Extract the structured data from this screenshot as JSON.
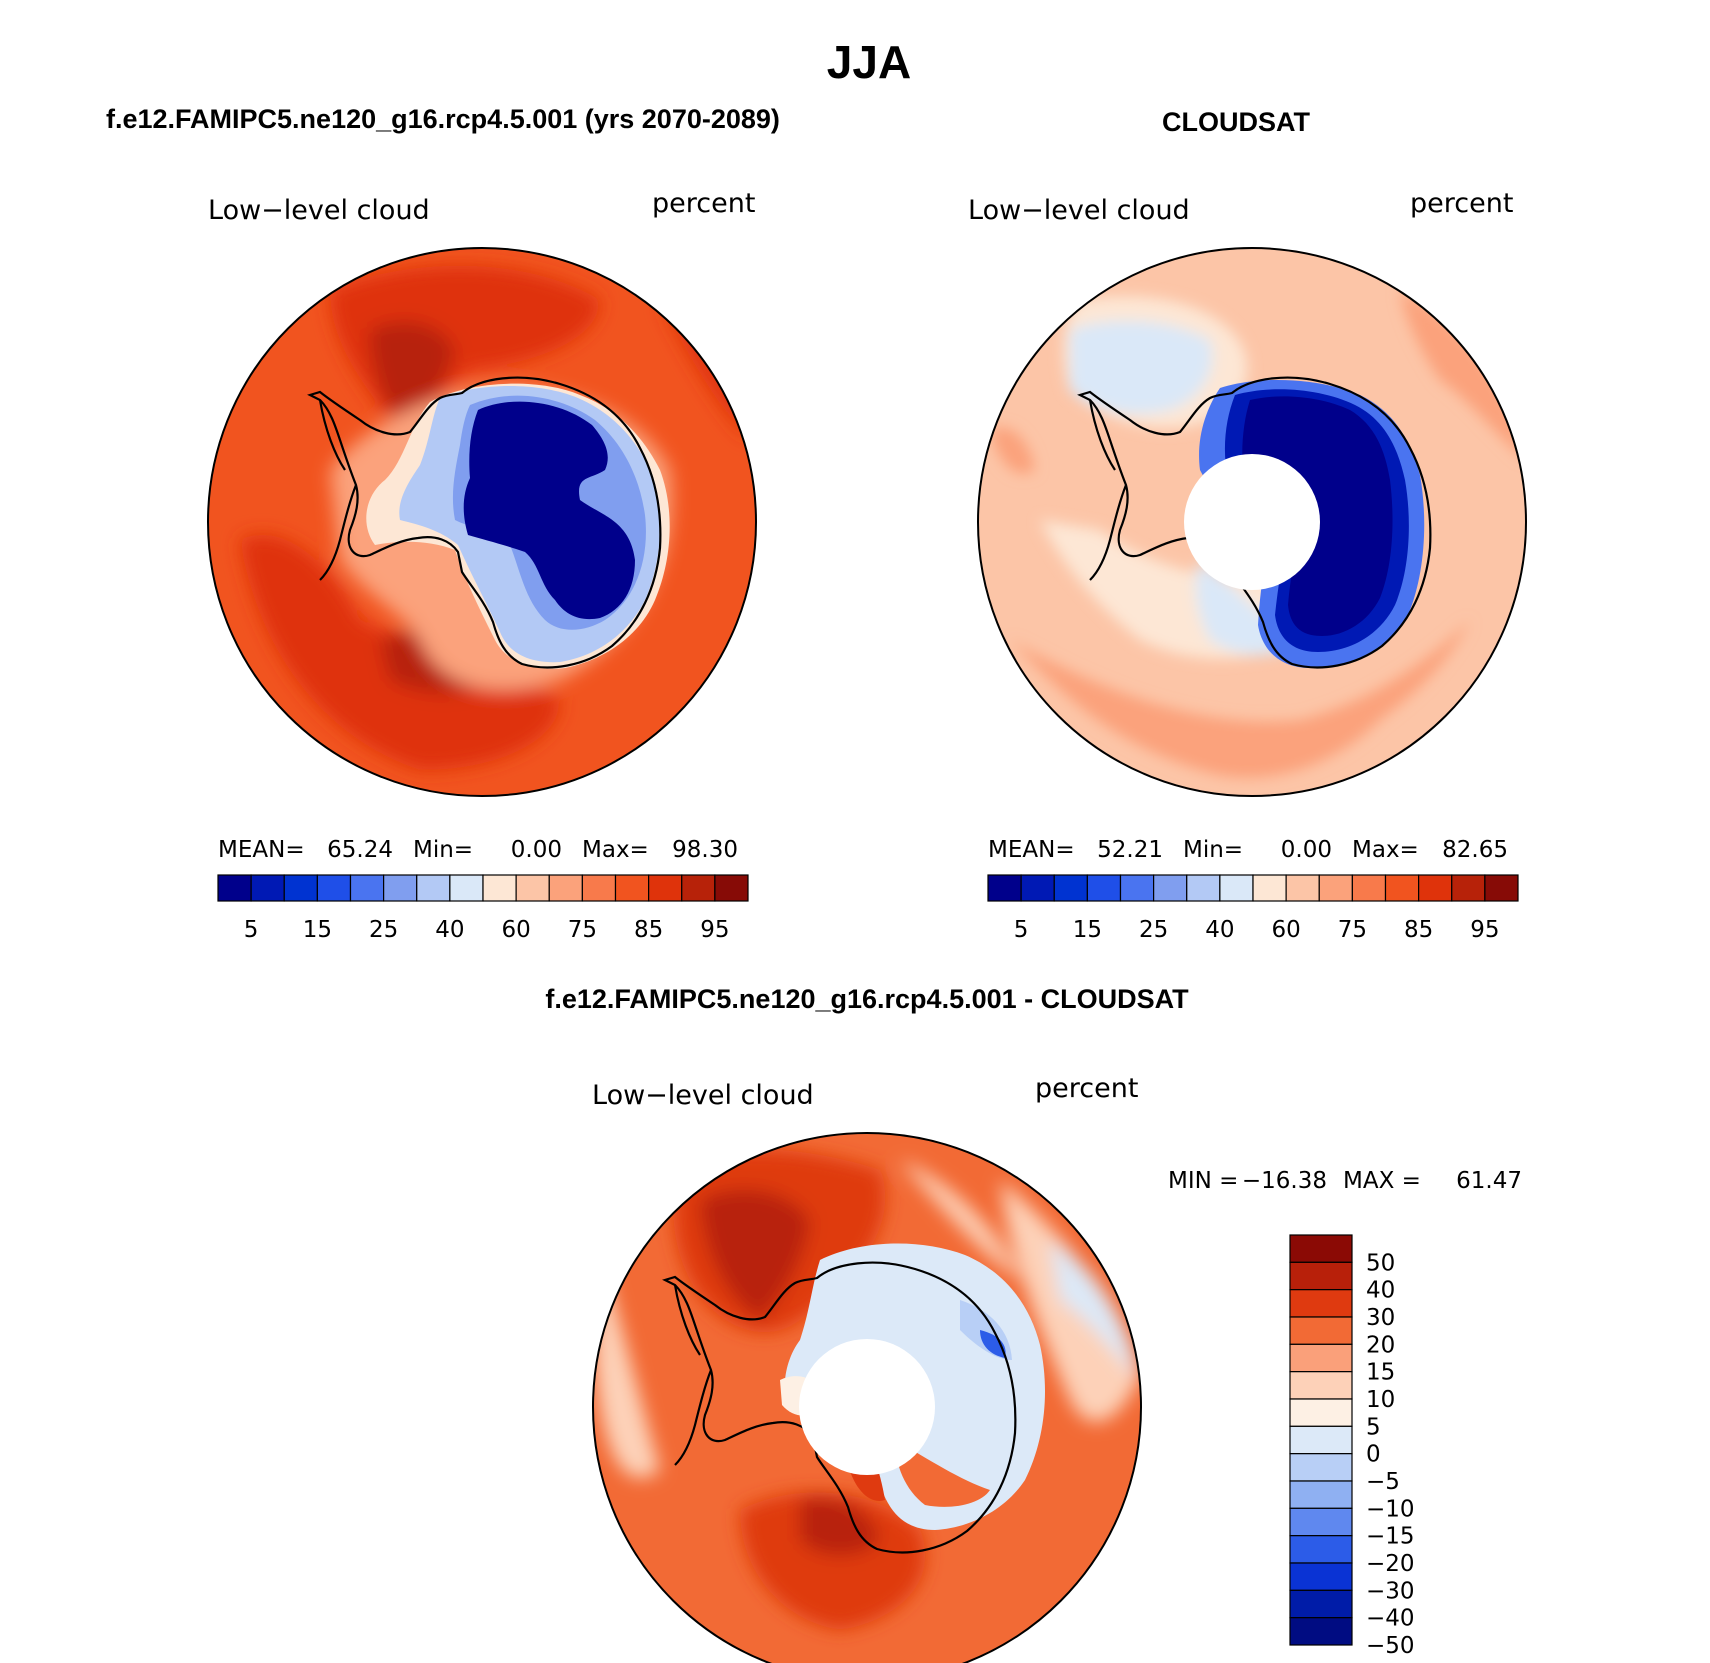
{
  "figure": {
    "title": "JJA"
  },
  "chart_data": [
    {
      "type": "heatmap",
      "projection": "south-polar-stereographic",
      "title": "f.e12.FAMIPC5.ne120_g16.rcp4.5.001 (yrs 2070-2089)",
      "left_label": "Low−level cloud",
      "right_label": "percent",
      "stats": {
        "mean_label": "MEAN=",
        "mean": "65.24",
        "min_label": "Min=",
        "min": "0.00",
        "max_label": "Max=",
        "max": "98.30"
      },
      "colorbar": {
        "orientation": "horizontal",
        "colors": [
          "#00008b",
          "#0019b4",
          "#0033d1",
          "#1f4fe8",
          "#4a74f0",
          "#809eef",
          "#b3c9f5",
          "#dae8f8",
          "#fde7d5",
          "#fcc5a7",
          "#fba27b",
          "#f87a4b",
          "#f1541f",
          "#df330b",
          "#b72209",
          "#870b06"
        ],
        "tick_labels": [
          "5",
          "15",
          "25",
          "40",
          "60",
          "75",
          "85",
          "95"
        ]
      },
      "has_pole_hole": false
    },
    {
      "type": "heatmap",
      "projection": "south-polar-stereographic",
      "title": "CLOUDSAT",
      "left_label": "Low−level cloud",
      "right_label": "percent",
      "stats": {
        "mean_label": "MEAN=",
        "mean": "52.21",
        "min_label": "Min=",
        "min": "0.00",
        "max_label": "Max=",
        "max": "82.65"
      },
      "colorbar": {
        "orientation": "horizontal",
        "colors": [
          "#00008b",
          "#0019b4",
          "#0033d1",
          "#1f4fe8",
          "#4a74f0",
          "#809eef",
          "#b3c9f5",
          "#dae8f8",
          "#fde7d5",
          "#fcc5a7",
          "#fba27b",
          "#f87a4b",
          "#f1541f",
          "#df330b",
          "#b72209",
          "#870b06"
        ],
        "tick_labels": [
          "5",
          "15",
          "25",
          "40",
          "60",
          "75",
          "85",
          "95"
        ]
      },
      "has_pole_hole": true
    },
    {
      "type": "heatmap",
      "projection": "south-polar-stereographic",
      "title": "f.e12.FAMIPC5.ne120_g16.rcp4.5.001 - CLOUDSAT",
      "left_label": "Low−level cloud",
      "right_label": "percent",
      "stats": {
        "min_label": "MIN =",
        "min": "−16.38",
        "max_label": "MAX =",
        "max": "61.47"
      },
      "colorbar": {
        "orientation": "vertical",
        "colors": [
          "#8b0a05",
          "#b8200a",
          "#df3a10",
          "#f26a35",
          "#faa07a",
          "#fdd1b8",
          "#fdf0e4",
          "#dce9f8",
          "#b8cff6",
          "#8fb0f2",
          "#5f88ef",
          "#2c5ce8",
          "#0a33d4",
          "#001ca8",
          "#000c82"
        ],
        "tick_labels": [
          "50",
          "40",
          "30",
          "20",
          "15",
          "10",
          "5",
          "0",
          "−5",
          "−10",
          "−15",
          "−20",
          "−30",
          "−40",
          "−50"
        ]
      },
      "has_pole_hole": true
    }
  ]
}
